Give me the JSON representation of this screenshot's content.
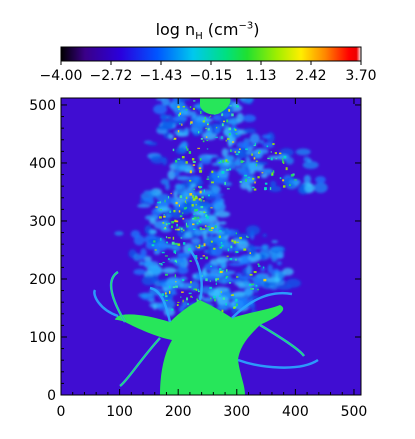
{
  "chart_data": {
    "type": "heatmap",
    "title": "",
    "colorbar": {
      "label_prefix": "log n",
      "label_sub": "H",
      "label_unit_open": " (cm",
      "label_unit_sup": "−3",
      "label_unit_close": ")",
      "ticks": [
        "−4.00",
        "−2.72",
        "−1.43",
        "−0.15",
        "1.13",
        "2.42",
        "3.70"
      ],
      "range": [
        -4.0,
        3.7
      ],
      "colormap": "rainbow"
    },
    "x_ticks": [
      "0",
      "100",
      "200",
      "300",
      "400",
      "500"
    ],
    "y_ticks": [
      "0",
      "100",
      "200",
      "300",
      "400",
      "500"
    ],
    "xlim": [
      0,
      512
    ],
    "ylim": [
      0,
      512
    ],
    "grid": false,
    "description_colors": {
      "background": "#3c0cd0",
      "dense": "#27e65a"
    }
  }
}
